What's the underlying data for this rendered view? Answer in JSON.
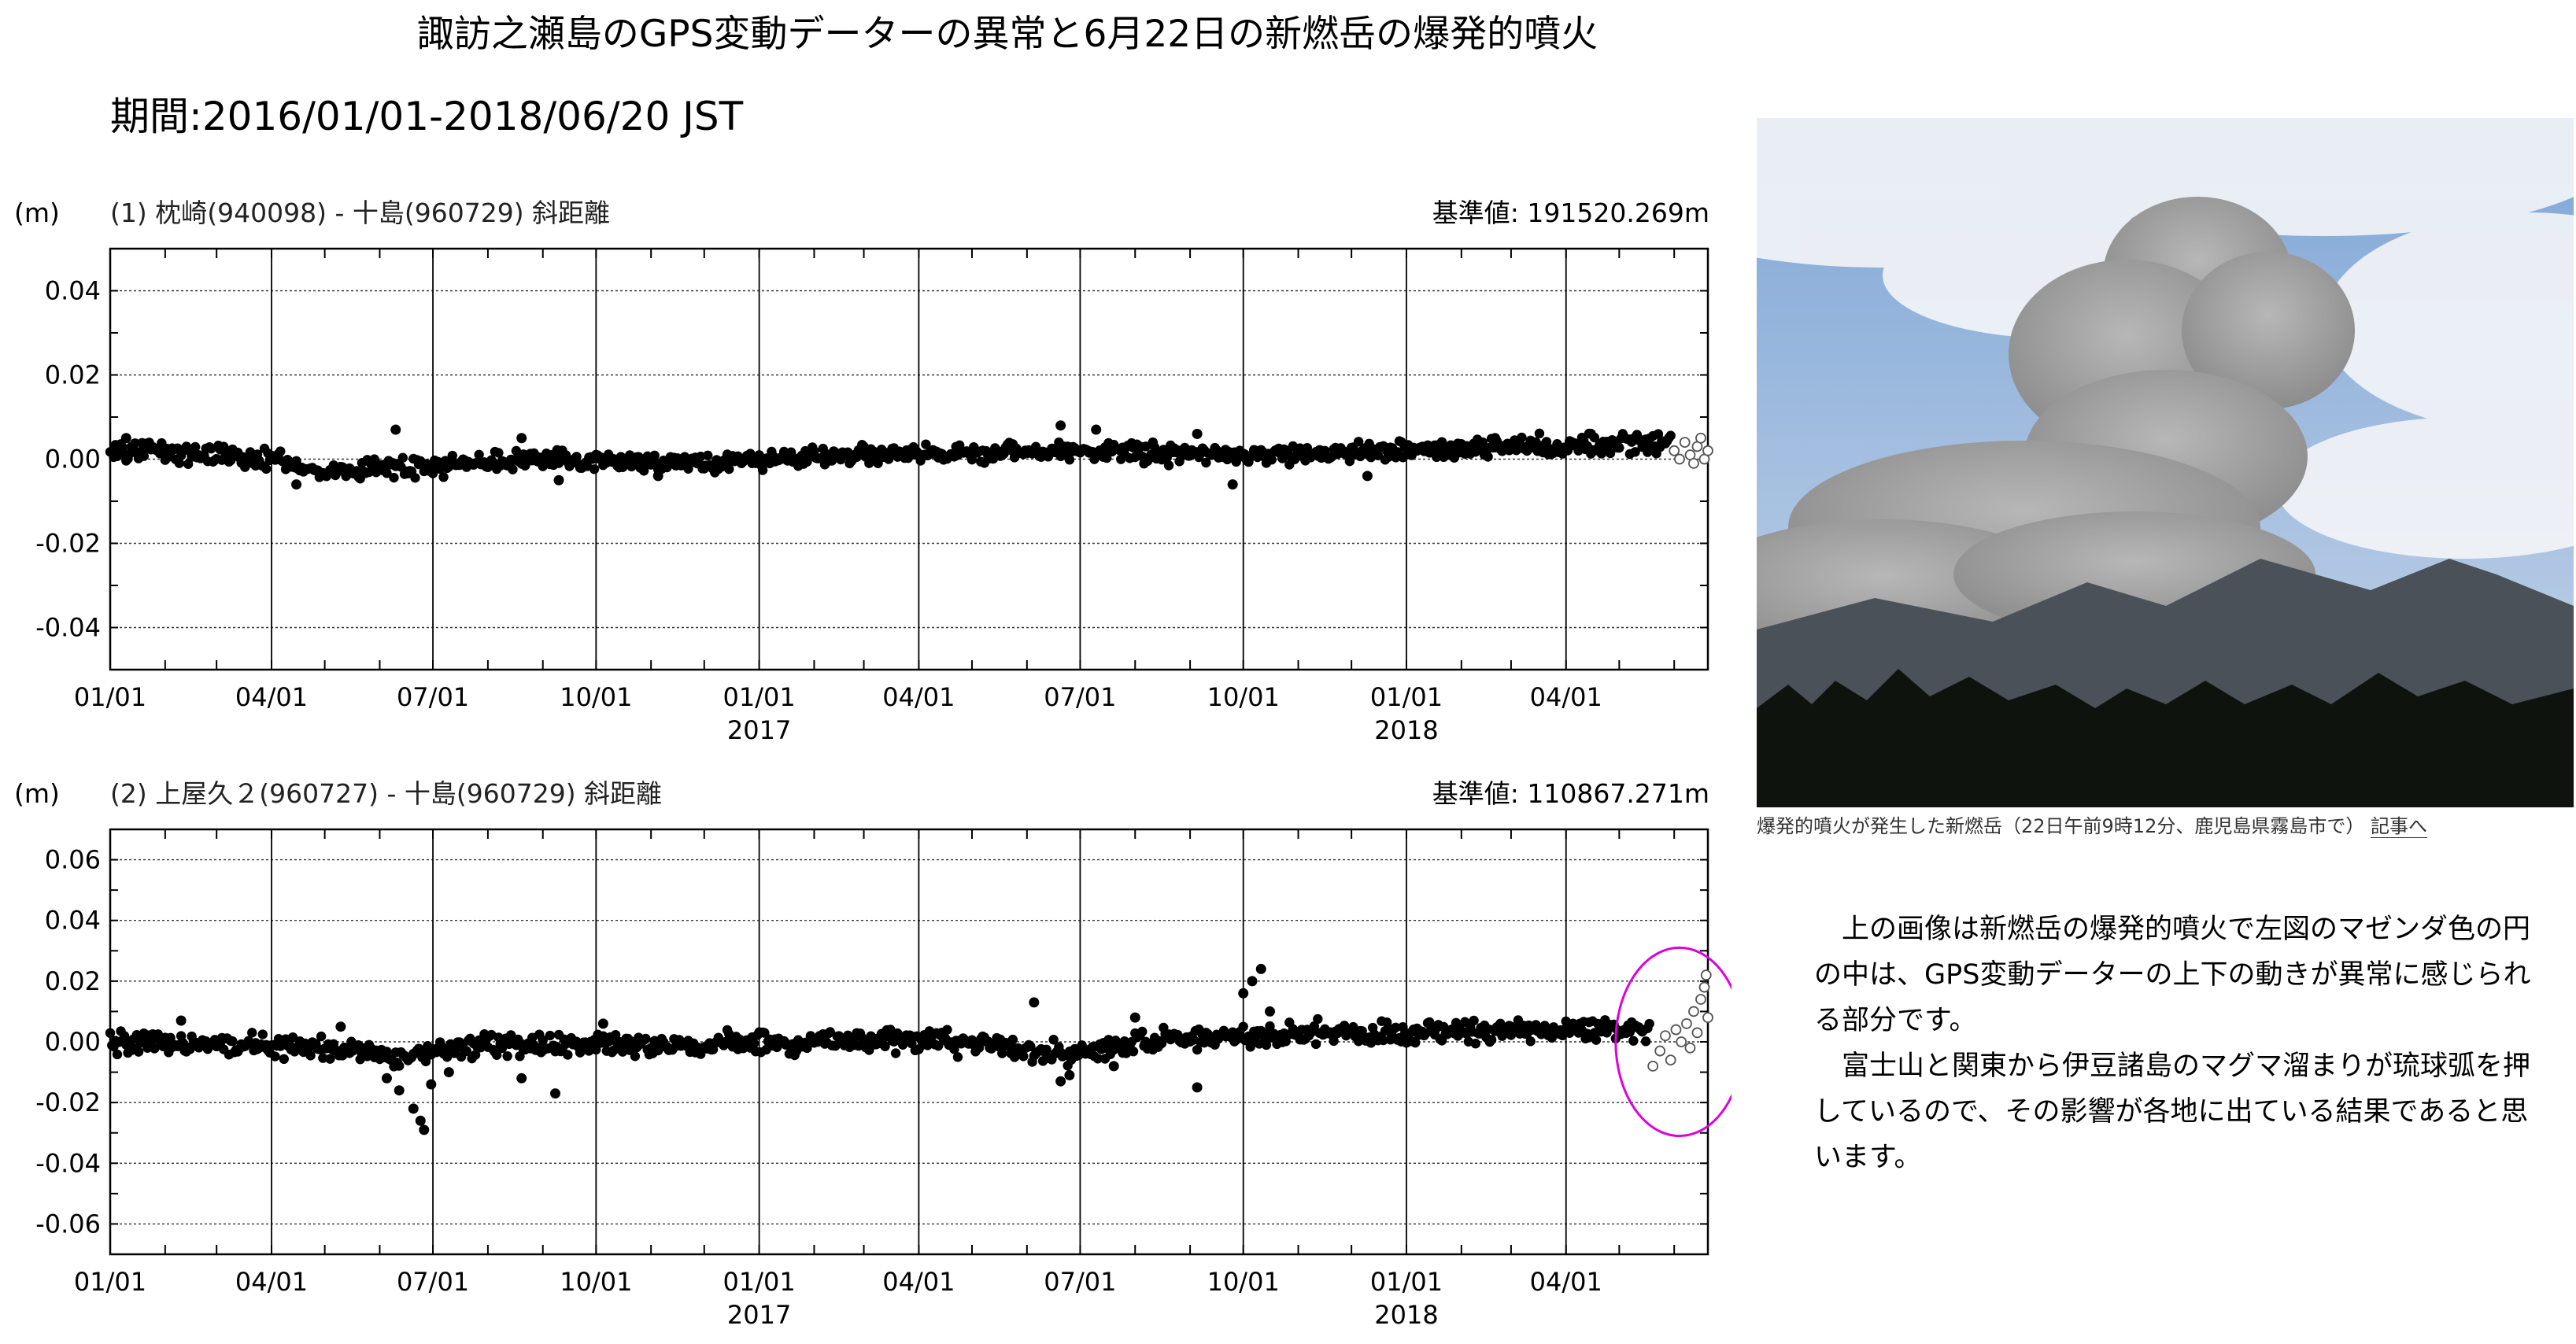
{
  "title": "諏訪之瀬島のGPS変動データーの異常と6月22日の新燃岳の爆発的噴火",
  "period": "期間:2016/01/01-2018/06/20 JST",
  "chart_data": [
    {
      "type": "scatter",
      "title": "(1) 枕崎(940098) - 十島(960729) 斜距離",
      "base_value": "基準値: 191520.269m",
      "ylabel": "(m)",
      "ylim": [
        -0.05,
        0.05
      ],
      "yticks": [
        -0.04,
        -0.02,
        0.0,
        0.02,
        0.04
      ],
      "ytick_labels": [
        "-0.04",
        "-0.02",
        "0.00",
        "0.02",
        "0.04"
      ],
      "x_range": [
        "2016-01-01",
        "2018-06-20"
      ],
      "xticks": [
        "2016-01-01",
        "2016-04-01",
        "2016-07-01",
        "2016-10-01",
        "2017-01-01",
        "2017-04-01",
        "2017-07-01",
        "2017-10-01",
        "2018-01-01",
        "2018-04-01"
      ],
      "xtick_labels": [
        "01/01",
        "04/01",
        "07/01",
        "10/01",
        "01/01",
        "04/01",
        "07/01",
        "10/01",
        "01/01",
        "04/01"
      ],
      "year_labels": [
        {
          "at": "2017-01-01",
          "text": "2017"
        },
        {
          "at": "2018-01-01",
          "text": "2018"
        }
      ],
      "grid": true,
      "series": [
        {
          "style": "filled",
          "trend": [
            [
              "2016-01-01",
              0.002
            ],
            [
              "2016-03-15",
              0.001
            ],
            [
              "2016-05-01",
              -0.003
            ],
            [
              "2016-06-15",
              -0.002
            ],
            [
              "2016-09-01",
              0.0
            ],
            [
              "2016-12-01",
              -0.001
            ],
            [
              "2017-03-01",
              0.001
            ],
            [
              "2017-07-01",
              0.002
            ],
            [
              "2017-10-01",
              0.001
            ],
            [
              "2018-01-01",
              0.002
            ],
            [
              "2018-06-01",
              0.004
            ]
          ],
          "scatter": 0.0016,
          "outliers": [
            [
              "2016-01-10",
              0.005
            ],
            [
              "2016-04-15",
              -0.006
            ],
            [
              "2016-06-10",
              0.007
            ],
            [
              "2016-08-20",
              0.005
            ],
            [
              "2016-09-10",
              -0.005
            ],
            [
              "2016-11-05",
              -0.004
            ],
            [
              "2017-06-20",
              0.008
            ],
            [
              "2017-07-10",
              0.007
            ],
            [
              "2017-09-05",
              0.006
            ],
            [
              "2017-09-25",
              -0.006
            ],
            [
              "2017-12-10",
              -0.004
            ],
            [
              "2018-02-20",
              0.005
            ],
            [
              "2018-04-15",
              0.006
            ]
          ]
        },
        {
          "style": "open",
          "points": [
            [
              "2018-06-01",
              0.002
            ],
            [
              "2018-06-04",
              0.0
            ],
            [
              "2018-06-07",
              0.004
            ],
            [
              "2018-06-10",
              0.001
            ],
            [
              "2018-06-12",
              -0.001
            ],
            [
              "2018-06-14",
              0.003
            ],
            [
              "2018-06-16",
              0.005
            ],
            [
              "2018-06-18",
              0.0
            ],
            [
              "2018-06-20",
              0.002
            ]
          ]
        }
      ]
    },
    {
      "type": "scatter",
      "title": "(2) 上屋久２(960727) - 十島(960729) 斜距離",
      "base_value": "基準値: 110867.271m",
      "ylabel": "(m)",
      "ylim": [
        -0.07,
        0.07
      ],
      "yticks": [
        -0.06,
        -0.04,
        -0.02,
        0.0,
        0.02,
        0.04,
        0.06
      ],
      "ytick_labels": [
        "-0.06",
        "-0.04",
        "-0.02",
        "0.00",
        "0.02",
        "0.04",
        "0.06"
      ],
      "x_range": [
        "2016-01-01",
        "2018-06-20"
      ],
      "xticks": [
        "2016-01-01",
        "2016-04-01",
        "2016-07-01",
        "2016-10-01",
        "2017-01-01",
        "2017-04-01",
        "2017-07-01",
        "2017-10-01",
        "2018-01-01",
        "2018-04-01"
      ],
      "xtick_labels": [
        "01/01",
        "04/01",
        "07/01",
        "10/01",
        "01/01",
        "04/01",
        "07/01",
        "10/01",
        "01/01",
        "04/01"
      ],
      "year_labels": [
        {
          "at": "2017-01-01",
          "text": "2017"
        },
        {
          "at": "2018-01-01",
          "text": "2018"
        }
      ],
      "grid": true,
      "series": [
        {
          "style": "filled",
          "trend": [
            [
              "2016-01-01",
              0.0
            ],
            [
              "2016-05-01",
              -0.002
            ],
            [
              "2016-06-15",
              -0.005
            ],
            [
              "2016-08-01",
              -0.001
            ],
            [
              "2016-12-01",
              -0.001
            ],
            [
              "2017-04-01",
              0.001
            ],
            [
              "2017-06-25",
              -0.004
            ],
            [
              "2017-08-15",
              0.001
            ],
            [
              "2017-10-01",
              0.002
            ],
            [
              "2018-01-01",
              0.003
            ],
            [
              "2018-05-15",
              0.004
            ]
          ],
          "scatter": 0.0025,
          "outliers": [
            [
              "2016-06-05",
              -0.012
            ],
            [
              "2016-06-12",
              -0.016
            ],
            [
              "2016-06-20",
              -0.022
            ],
            [
              "2016-06-24",
              -0.026
            ],
            [
              "2016-06-26",
              -0.029
            ],
            [
              "2016-06-30",
              -0.014
            ],
            [
              "2016-07-10",
              -0.01
            ],
            [
              "2016-08-20",
              -0.012
            ],
            [
              "2016-09-08",
              -0.017
            ],
            [
              "2016-05-10",
              0.005
            ],
            [
              "2016-02-10",
              0.007
            ],
            [
              "2016-10-05",
              0.006
            ],
            [
              "2017-06-05",
              0.013
            ],
            [
              "2017-06-20",
              -0.013
            ],
            [
              "2017-06-25",
              -0.011
            ],
            [
              "2017-07-20",
              -0.008
            ],
            [
              "2017-09-05",
              -0.015
            ],
            [
              "2017-10-01",
              0.016
            ],
            [
              "2017-10-06",
              0.02
            ],
            [
              "2017-10-11",
              0.024
            ],
            [
              "2017-10-16",
              0.01
            ],
            [
              "2017-08-01",
              0.008
            ]
          ]
        },
        {
          "style": "open",
          "points": [
            [
              "2018-05-20",
              -0.008
            ],
            [
              "2018-05-24",
              -0.003
            ],
            [
              "2018-05-27",
              0.002
            ],
            [
              "2018-05-30",
              -0.006
            ],
            [
              "2018-06-02",
              0.004
            ],
            [
              "2018-06-05",
              0.0
            ],
            [
              "2018-06-08",
              0.006
            ],
            [
              "2018-06-10",
              -0.002
            ],
            [
              "2018-06-12",
              0.01
            ],
            [
              "2018-06-14",
              0.003
            ],
            [
              "2018-06-16",
              0.014
            ],
            [
              "2018-06-18",
              0.018
            ],
            [
              "2018-06-19",
              0.022
            ],
            [
              "2018-06-20",
              0.008
            ]
          ]
        }
      ],
      "highlight_ellipse": {
        "color": "#dd00dd",
        "center": [
          "2018-06-04",
          0.0
        ],
        "semi_axis_days": 36,
        "semi_axis_y": 0.031
      }
    }
  ],
  "photo": {
    "caption": "爆発的噴火が発生した新燃岳（22日午前9時12分、鹿児島県霧島市で）",
    "link_label": "記事へ",
    "colors": {
      "sky": "#7fa6d6",
      "cloud": "#f2f4f7",
      "plume": "#8c8c8c",
      "plume_light": "#b7b7b7",
      "mountain": "#4a5158",
      "trees": "#0f130e"
    }
  },
  "note": {
    "p1": "　上の画像は新燃岳の爆発的噴火で左図のマゼンダ色の円の中は、GPS変動データーの上下の動きが異常に感じられる部分です。",
    "p2": "　富士山と関東から伊豆諸島のマグマ溜まりが琉球弧を押しているので、その影響が各地に出ている結果であると思います。"
  }
}
